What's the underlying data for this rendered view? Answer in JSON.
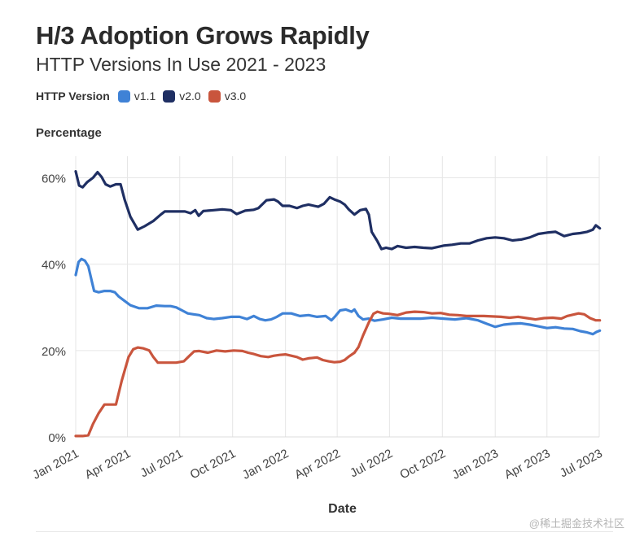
{
  "header": {
    "title": "H/3 Adoption Grows Rapidly",
    "subtitle": "HTTP Versions In Use 2021 - 2023"
  },
  "legend": {
    "title": "HTTP Version"
  },
  "watermark": "@稀土掘金技术社区",
  "colors": {
    "v1.1": "#3f82d6",
    "v2.0": "#1f2f63",
    "v3.0": "#c9553d",
    "grid": "#e6e6e6"
  },
  "chart_data": {
    "type": "line",
    "title": "H/3 Adoption Grows Rapidly",
    "subtitle": "HTTP Versions In Use 2021 - 2023",
    "xlabel": "Date",
    "ylabel": "Percentage",
    "x_start": "2021-01-01",
    "x_end": "2023-07-01",
    "ylim": [
      0,
      65
    ],
    "yticks": [
      0,
      20,
      40,
      60
    ],
    "ytick_labels": [
      "0%",
      "20%",
      "40%",
      "60%"
    ],
    "xticks": [
      0,
      90,
      181,
      273,
      365,
      455,
      546,
      638,
      730,
      820,
      911
    ],
    "xtick_labels": [
      "Jan 2021",
      "Apr 2021",
      "Jul 2021",
      "Oct 2021",
      "Jan 2022",
      "Apr 2022",
      "Jul 2022",
      "Oct 2022",
      "Jan 2023",
      "Apr 2023",
      "Jul 2023"
    ],
    "legend_title": "HTTP Version",
    "legend_position": "top-left",
    "grid": true,
    "series": [
      {
        "name": "v1.1",
        "color": "#3f82d6",
        "points": [
          [
            0,
            37.5
          ],
          [
            5,
            40.5
          ],
          [
            10,
            41.2
          ],
          [
            16,
            40.8
          ],
          [
            22,
            39.5
          ],
          [
            28,
            36
          ],
          [
            32,
            33.8
          ],
          [
            40,
            33.5
          ],
          [
            50,
            33.8
          ],
          [
            60,
            33.8
          ],
          [
            68,
            33.5
          ],
          [
            75,
            32.5
          ],
          [
            85,
            31.5
          ],
          [
            95,
            30.5
          ],
          [
            110,
            29.8
          ],
          [
            125,
            29.8
          ],
          [
            140,
            30.4
          ],
          [
            155,
            30.3
          ],
          [
            165,
            30.3
          ],
          [
            175,
            30
          ],
          [
            185,
            29.3
          ],
          [
            195,
            28.6
          ],
          [
            205,
            28.4
          ],
          [
            215,
            28.2
          ],
          [
            228,
            27.5
          ],
          [
            240,
            27.3
          ],
          [
            255,
            27.5
          ],
          [
            270,
            27.8
          ],
          [
            285,
            27.8
          ],
          [
            298,
            27.3
          ],
          [
            310,
            28
          ],
          [
            320,
            27.3
          ],
          [
            330,
            27
          ],
          [
            340,
            27.2
          ],
          [
            350,
            27.8
          ],
          [
            360,
            28.6
          ],
          [
            375,
            28.6
          ],
          [
            390,
            28
          ],
          [
            405,
            28.2
          ],
          [
            420,
            27.8
          ],
          [
            435,
            28
          ],
          [
            445,
            27
          ],
          [
            452,
            28
          ],
          [
            460,
            29.3
          ],
          [
            470,
            29.5
          ],
          [
            480,
            29
          ],
          [
            485,
            29.5
          ],
          [
            492,
            28
          ],
          [
            500,
            27.2
          ],
          [
            510,
            27.4
          ],
          [
            520,
            26.9
          ],
          [
            535,
            27.2
          ],
          [
            550,
            27.6
          ],
          [
            565,
            27.4
          ],
          [
            580,
            27.4
          ],
          [
            600,
            27.4
          ],
          [
            620,
            27.6
          ],
          [
            640,
            27.4
          ],
          [
            660,
            27.2
          ],
          [
            680,
            27.5
          ],
          [
            700,
            27
          ],
          [
            715,
            26.2
          ],
          [
            730,
            25.5
          ],
          [
            745,
            26
          ],
          [
            760,
            26.2
          ],
          [
            775,
            26.3
          ],
          [
            790,
            26
          ],
          [
            805,
            25.6
          ],
          [
            820,
            25.2
          ],
          [
            835,
            25.4
          ],
          [
            850,
            25.1
          ],
          [
            865,
            25
          ],
          [
            878,
            24.5
          ],
          [
            890,
            24.2
          ],
          [
            900,
            23.8
          ],
          [
            906,
            24.3
          ],
          [
            912,
            24.6
          ]
        ]
      },
      {
        "name": "v2.0",
        "color": "#1f2f63",
        "points": [
          [
            0,
            61.5
          ],
          [
            6,
            58.2
          ],
          [
            12,
            57.8
          ],
          [
            20,
            59
          ],
          [
            30,
            60
          ],
          [
            38,
            61.3
          ],
          [
            45,
            60.2
          ],
          [
            52,
            58.5
          ],
          [
            60,
            58
          ],
          [
            70,
            58.5
          ],
          [
            78,
            58.5
          ],
          [
            85,
            55
          ],
          [
            95,
            51
          ],
          [
            108,
            48
          ],
          [
            120,
            48.8
          ],
          [
            135,
            50
          ],
          [
            148,
            51.5
          ],
          [
            155,
            52.2
          ],
          [
            170,
            52.2
          ],
          [
            190,
            52.2
          ],
          [
            200,
            51.8
          ],
          [
            208,
            52.5
          ],
          [
            214,
            51.2
          ],
          [
            222,
            52.3
          ],
          [
            240,
            52.5
          ],
          [
            255,
            52.7
          ],
          [
            270,
            52.5
          ],
          [
            280,
            51.6
          ],
          [
            295,
            52.4
          ],
          [
            310,
            52.6
          ],
          [
            318,
            53
          ],
          [
            332,
            54.8
          ],
          [
            345,
            55
          ],
          [
            352,
            54.5
          ],
          [
            360,
            53.5
          ],
          [
            372,
            53.5
          ],
          [
            385,
            53
          ],
          [
            395,
            53.5
          ],
          [
            405,
            53.8
          ],
          [
            415,
            53.5
          ],
          [
            422,
            53.3
          ],
          [
            432,
            54
          ],
          [
            442,
            55.5
          ],
          [
            450,
            55
          ],
          [
            460,
            54.5
          ],
          [
            468,
            53.8
          ],
          [
            475,
            52.7
          ],
          [
            485,
            51.5
          ],
          [
            495,
            52.5
          ],
          [
            505,
            52.8
          ],
          [
            510,
            51.5
          ],
          [
            515,
            47.5
          ],
          [
            525,
            45.3
          ],
          [
            532,
            43.5
          ],
          [
            540,
            43.8
          ],
          [
            550,
            43.5
          ],
          [
            560,
            44.2
          ],
          [
            575,
            43.8
          ],
          [
            590,
            44
          ],
          [
            605,
            43.8
          ],
          [
            620,
            43.7
          ],
          [
            640,
            44.3
          ],
          [
            655,
            44.5
          ],
          [
            670,
            44.8
          ],
          [
            685,
            44.8
          ],
          [
            700,
            45.5
          ],
          [
            715,
            46
          ],
          [
            730,
            46.2
          ],
          [
            745,
            46
          ],
          [
            760,
            45.5
          ],
          [
            775,
            45.7
          ],
          [
            790,
            46.2
          ],
          [
            805,
            47
          ],
          [
            820,
            47.3
          ],
          [
            835,
            47.5
          ],
          [
            850,
            46.5
          ],
          [
            865,
            47
          ],
          [
            878,
            47.2
          ],
          [
            890,
            47.5
          ],
          [
            900,
            48
          ],
          [
            905,
            49
          ],
          [
            912,
            48.3
          ]
        ]
      },
      {
        "name": "v3.0",
        "color": "#c9553d",
        "points": [
          [
            0,
            0.2
          ],
          [
            12,
            0.2
          ],
          [
            22,
            0.4
          ],
          [
            30,
            3
          ],
          [
            40,
            5.5
          ],
          [
            50,
            7.5
          ],
          [
            60,
            7.5
          ],
          [
            70,
            7.5
          ],
          [
            80,
            13
          ],
          [
            92,
            18.5
          ],
          [
            100,
            20.3
          ],
          [
            108,
            20.7
          ],
          [
            118,
            20.5
          ],
          [
            128,
            20
          ],
          [
            135,
            18.5
          ],
          [
            143,
            17.2
          ],
          [
            160,
            17.2
          ],
          [
            175,
            17.2
          ],
          [
            188,
            17.5
          ],
          [
            198,
            18.8
          ],
          [
            206,
            19.8
          ],
          [
            215,
            19.9
          ],
          [
            230,
            19.5
          ],
          [
            245,
            20
          ],
          [
            260,
            19.8
          ],
          [
            275,
            20
          ],
          [
            290,
            19.9
          ],
          [
            300,
            19.5
          ],
          [
            310,
            19.2
          ],
          [
            322,
            18.7
          ],
          [
            335,
            18.5
          ],
          [
            345,
            18.8
          ],
          [
            355,
            19
          ],
          [
            365,
            19.1
          ],
          [
            375,
            18.8
          ],
          [
            385,
            18.5
          ],
          [
            395,
            17.9
          ],
          [
            405,
            18.2
          ],
          [
            420,
            18.4
          ],
          [
            430,
            17.8
          ],
          [
            440,
            17.5
          ],
          [
            450,
            17.3
          ],
          [
            460,
            17.4
          ],
          [
            468,
            17.8
          ],
          [
            475,
            18.6
          ],
          [
            485,
            19.5
          ],
          [
            492,
            20.8
          ],
          [
            500,
            23.5
          ],
          [
            510,
            26.5
          ],
          [
            518,
            28.5
          ],
          [
            525,
            29
          ],
          [
            535,
            28.6
          ],
          [
            545,
            28.5
          ],
          [
            560,
            28.2
          ],
          [
            575,
            28.8
          ],
          [
            590,
            29
          ],
          [
            605,
            28.9
          ],
          [
            620,
            28.6
          ],
          [
            635,
            28.7
          ],
          [
            650,
            28.3
          ],
          [
            665,
            28.2
          ],
          [
            680,
            28
          ],
          [
            695,
            28
          ],
          [
            710,
            28
          ],
          [
            725,
            27.9
          ],
          [
            740,
            27.8
          ],
          [
            755,
            27.6
          ],
          [
            770,
            27.8
          ],
          [
            785,
            27.5
          ],
          [
            800,
            27.2
          ],
          [
            815,
            27.5
          ],
          [
            830,
            27.6
          ],
          [
            845,
            27.4
          ],
          [
            855,
            28
          ],
          [
            865,
            28.3
          ],
          [
            875,
            28.6
          ],
          [
            885,
            28.4
          ],
          [
            895,
            27.5
          ],
          [
            905,
            27
          ],
          [
            912,
            27
          ]
        ]
      }
    ]
  }
}
